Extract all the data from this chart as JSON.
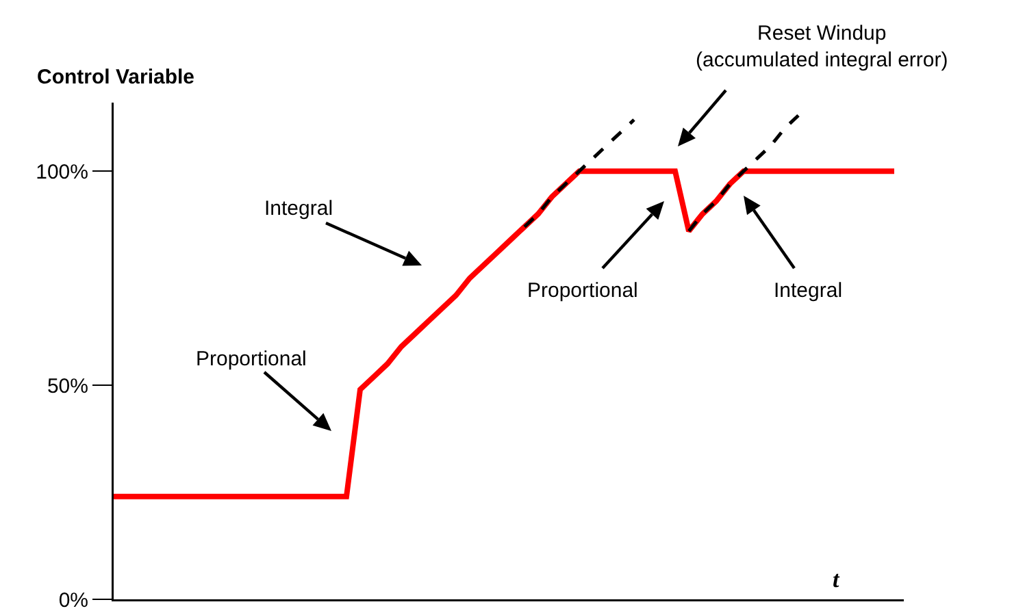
{
  "chart_data": {
    "type": "line",
    "ylabel": "Control Variable",
    "xlabel": "t",
    "categories": [
      null,
      null,
      null,
      null,
      null,
      null,
      null,
      null,
      null,
      null,
      null,
      null,
      null,
      null,
      null,
      null,
      null,
      null,
      null,
      null,
      null,
      null,
      null,
      null,
      null,
      null,
      null,
      null,
      null,
      null,
      null,
      null,
      null,
      null,
      null,
      null,
      null,
      null,
      null,
      null,
      null,
      null,
      null,
      null,
      null,
      null,
      null,
      null,
      null,
      null,
      null,
      null,
      null,
      null,
      null,
      null,
      null,
      null
    ],
    "series": [
      {
        "color": "#ff0000",
        "line_style": "solid",
        "values": [
          24,
          24,
          24,
          24,
          24,
          24,
          24,
          24,
          24,
          24,
          24,
          24,
          24,
          24,
          24,
          24,
          24,
          24,
          49,
          52,
          55,
          59,
          62,
          65,
          68,
          71,
          75,
          78,
          81,
          84,
          87,
          90,
          94,
          97,
          100,
          100,
          100,
          100,
          100,
          100,
          100,
          100,
          86,
          90,
          93,
          97,
          100,
          100,
          100,
          100,
          100,
          100,
          100,
          100,
          100,
          100,
          100,
          100
        ]
      },
      {
        "color": "#000000",
        "line_style": "dashed",
        "values": [
          null,
          null,
          null,
          null,
          null,
          null,
          null,
          null,
          null,
          null,
          null,
          null,
          null,
          null,
          null,
          null,
          null,
          null,
          null,
          null,
          null,
          null,
          null,
          null,
          null,
          null,
          null,
          null,
          null,
          null,
          87,
          90,
          94,
          97,
          100,
          103,
          106,
          109,
          112,
          null,
          null,
          null,
          86,
          90,
          93,
          97,
          100,
          103,
          106,
          110,
          113,
          null,
          null,
          null,
          null,
          null,
          null,
          null
        ]
      }
    ],
    "ylim": [
      0,
      116
    ],
    "yticks": [
      {
        "value": 0,
        "label": "0%"
      },
      {
        "value": 50,
        "label": "50%"
      },
      {
        "value": 100,
        "label": "100%"
      }
    ],
    "tick_labels": "y",
    "grid": false,
    "marker": "none",
    "annotations": [
      "Integral",
      "Proportional",
      "Proportional",
      "Integral",
      "Reset Windup\n(accumulated integral error)"
    ]
  }
}
